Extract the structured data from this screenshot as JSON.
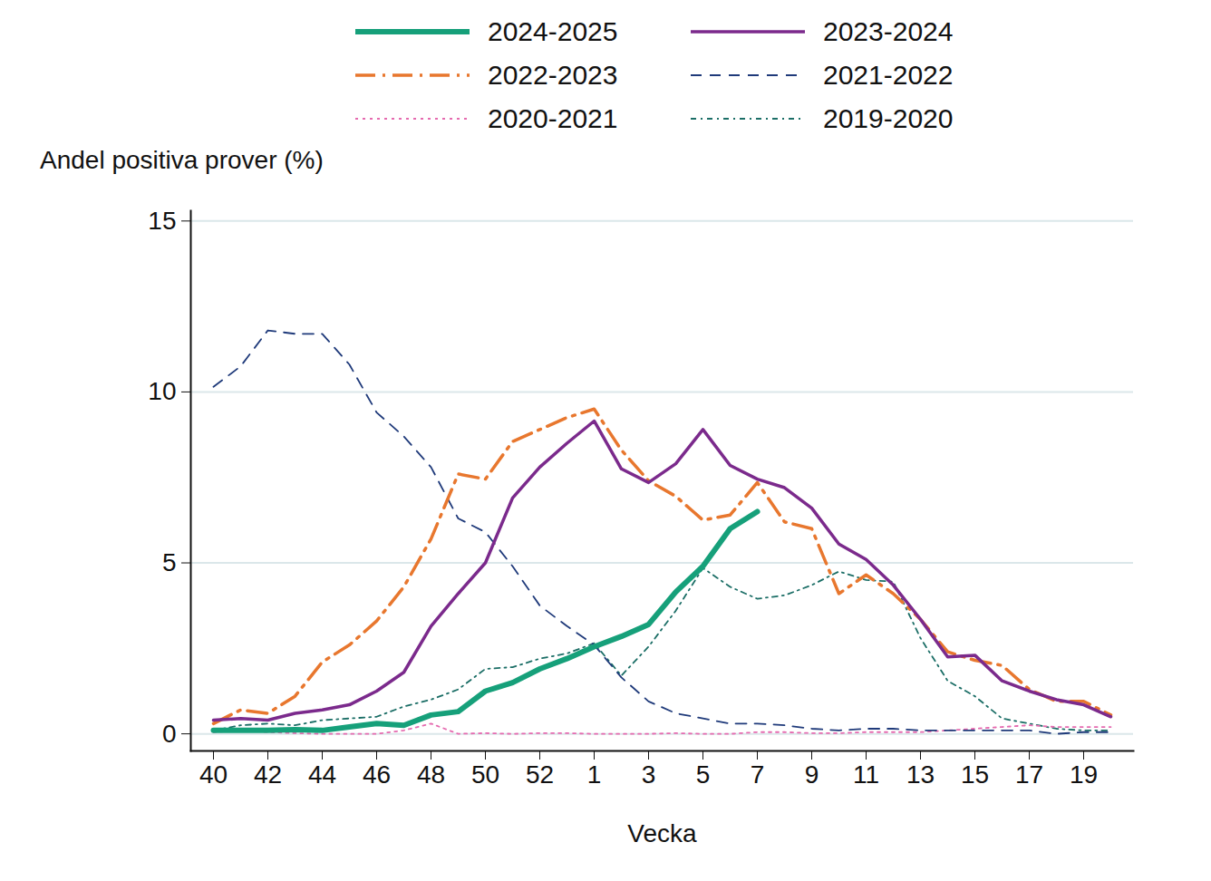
{
  "chart_data": {
    "type": "line",
    "y_label": "Andel positiva prover (%)",
    "x_label": "Vecka",
    "categories": [
      40,
      null,
      42,
      null,
      44,
      null,
      46,
      null,
      48,
      null,
      50,
      null,
      52,
      null,
      1,
      null,
      3,
      null,
      5,
      null,
      7,
      null,
      9,
      null,
      11,
      null,
      13,
      null,
      15,
      null,
      17,
      null,
      19,
      null
    ],
    "ylim": [
      -0.5,
      15.3
    ],
    "yticks": [
      0,
      5,
      10,
      15
    ],
    "grid": true,
    "legend": "top",
    "series": [
      {
        "name": "2024-2025",
        "color": "#16a07a",
        "line_style": "solid",
        "values": [
          0.1,
          0.1,
          0.1,
          0.12,
          0.1,
          0.2,
          0.3,
          0.25,
          0.55,
          0.65,
          1.25,
          1.5,
          1.9,
          2.2,
          2.55,
          2.85,
          3.2,
          4.15,
          4.9,
          6.0,
          6.5,
          null,
          null,
          null,
          null,
          null,
          null,
          null,
          null,
          null,
          null,
          null,
          null,
          null
        ]
      },
      {
        "name": "2023-2024",
        "color": "#7b2a8c",
        "line_style": "solid",
        "values": [
          0.4,
          0.45,
          0.4,
          0.6,
          0.7,
          0.85,
          1.25,
          1.8,
          3.15,
          4.1,
          5.0,
          6.9,
          7.8,
          8.5,
          9.15,
          7.75,
          7.35,
          7.9,
          8.9,
          7.85,
          7.45,
          7.2,
          6.6,
          5.55,
          5.1,
          4.35,
          3.35,
          2.25,
          2.3,
          1.55,
          1.25,
          1.0,
          0.85,
          0.5
        ]
      },
      {
        "name": "2022-2023",
        "color": "#e8772e",
        "line_style": "longdashdot",
        "values": [
          0.3,
          0.7,
          0.6,
          1.1,
          2.1,
          2.6,
          3.3,
          4.3,
          5.7,
          7.6,
          7.45,
          8.55,
          8.9,
          9.25,
          9.5,
          8.3,
          7.4,
          6.95,
          6.25,
          6.4,
          7.35,
          6.2,
          6.0,
          4.1,
          4.65,
          4.1,
          3.35,
          2.4,
          2.15,
          2.0,
          1.3,
          0.95,
          0.95,
          0.55
        ]
      },
      {
        "name": "2021-2022",
        "color": "#1f3a7a",
        "line_style": "dashed",
        "values": [
          10.15,
          10.75,
          11.8,
          11.7,
          11.7,
          10.8,
          9.4,
          8.7,
          7.8,
          6.3,
          5.9,
          4.9,
          3.75,
          3.15,
          2.6,
          1.65,
          0.95,
          0.6,
          0.45,
          0.3,
          0.3,
          0.25,
          0.15,
          0.1,
          0.15,
          0.15,
          0.1,
          0.1,
          0.1,
          0.1,
          0.1,
          0.0,
          0.05,
          0.05
        ]
      },
      {
        "name": "2020-2021",
        "color": "#e56bb0",
        "line_style": "dotted",
        "values": [
          0.05,
          0.1,
          0.05,
          0.02,
          0.0,
          0.0,
          0.0,
          0.1,
          0.3,
          0.0,
          0.02,
          0.0,
          0.02,
          0.02,
          0.0,
          0.0,
          0.0,
          0.02,
          0.0,
          0.0,
          0.05,
          0.05,
          0.02,
          0.02,
          0.05,
          0.05,
          0.05,
          0.1,
          0.15,
          0.2,
          0.25,
          0.2,
          0.2,
          0.2
        ]
      },
      {
        "name": "2019-2020",
        "color": "#1b6e66",
        "line_style": "dashdot",
        "values": [
          0.1,
          0.25,
          0.3,
          0.25,
          0.4,
          0.45,
          0.5,
          0.8,
          1.0,
          1.3,
          1.9,
          1.95,
          2.2,
          2.35,
          2.65,
          1.7,
          2.55,
          3.6,
          4.85,
          4.3,
          3.95,
          4.05,
          4.35,
          4.75,
          4.5,
          4.45,
          2.8,
          1.55,
          1.1,
          0.45,
          0.3,
          0.15,
          0.1,
          0.1
        ]
      }
    ]
  }
}
